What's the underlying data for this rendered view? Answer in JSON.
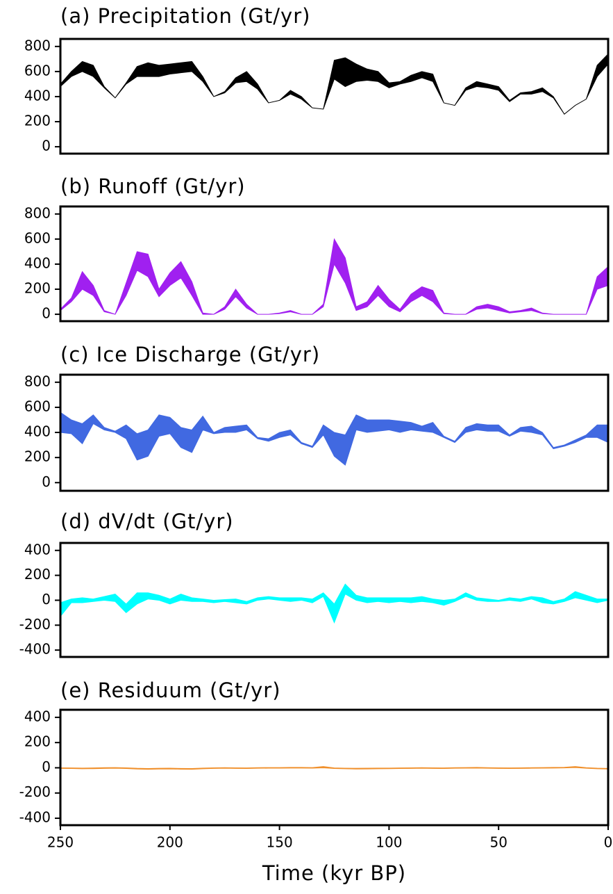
{
  "chart_data": [
    {
      "type": "band",
      "title": "(a) Precipitation (Gt/yr)",
      "color": "#000000",
      "x": [
        250,
        245,
        240,
        235,
        230,
        225,
        220,
        215,
        210,
        205,
        200,
        195,
        190,
        185,
        180,
        175,
        170,
        165,
        160,
        155,
        150,
        145,
        140,
        135,
        130,
        125,
        120,
        115,
        110,
        105,
        100,
        95,
        90,
        85,
        80,
        75,
        70,
        65,
        60,
        55,
        50,
        45,
        40,
        35,
        30,
        25,
        20,
        15,
        10,
        5,
        0
      ],
      "low": [
        480,
        560,
        600,
        560,
        470,
        390,
        500,
        560,
        560,
        560,
        580,
        590,
        600,
        520,
        400,
        430,
        510,
        520,
        460,
        350,
        370,
        420,
        380,
        310,
        300,
        540,
        480,
        520,
        530,
        520,
        470,
        500,
        520,
        550,
        520,
        350,
        330,
        450,
        480,
        470,
        450,
        360,
        420,
        420,
        440,
        390,
        260,
        330,
        380,
        560,
        660
      ],
      "high": [
        500,
        600,
        680,
        650,
        480,
        390,
        510,
        640,
        670,
        650,
        660,
        670,
        680,
        560,
        400,
        440,
        550,
        600,
        500,
        350,
        370,
        450,
        400,
        310,
        300,
        690,
        710,
        660,
        620,
        600,
        510,
        520,
        570,
        600,
        580,
        350,
        330,
        470,
        520,
        500,
        480,
        370,
        430,
        440,
        470,
        400,
        260,
        330,
        380,
        650,
        740
      ],
      "xlim": [
        250,
        0
      ],
      "ylim": [
        -55,
        860
      ],
      "yticks": [
        0,
        200,
        400,
        600,
        800
      ]
    },
    {
      "type": "band",
      "title": "(b) Runoff (Gt/yr)",
      "color": "#a020f0",
      "x": [
        250,
        245,
        240,
        235,
        230,
        225,
        220,
        215,
        210,
        205,
        200,
        195,
        190,
        185,
        180,
        175,
        170,
        165,
        160,
        155,
        150,
        145,
        140,
        135,
        130,
        125,
        120,
        115,
        110,
        105,
        100,
        95,
        90,
        85,
        80,
        75,
        70,
        65,
        60,
        55,
        50,
        45,
        40,
        35,
        30,
        25,
        20,
        15,
        10,
        5,
        0
      ],
      "low": [
        30,
        100,
        200,
        150,
        20,
        0,
        150,
        350,
        300,
        140,
        230,
        290,
        150,
        0,
        0,
        40,
        140,
        50,
        0,
        0,
        5,
        20,
        0,
        0,
        60,
        400,
        250,
        30,
        60,
        150,
        60,
        20,
        100,
        150,
        100,
        5,
        0,
        0,
        40,
        50,
        30,
        10,
        20,
        30,
        5,
        0,
        0,
        0,
        0,
        200,
        230
      ],
      "high": [
        40,
        130,
        340,
        230,
        30,
        0,
        250,
        500,
        480,
        200,
        330,
        420,
        260,
        10,
        0,
        60,
        200,
        80,
        0,
        0,
        10,
        30,
        0,
        0,
        80,
        600,
        450,
        60,
        100,
        230,
        120,
        40,
        160,
        220,
        190,
        10,
        0,
        0,
        60,
        80,
        60,
        20,
        30,
        50,
        10,
        0,
        0,
        0,
        0,
        300,
        380
      ],
      "xlim": [
        250,
        0
      ],
      "ylim": [
        -55,
        860
      ],
      "yticks": [
        0,
        200,
        400,
        600,
        800
      ]
    },
    {
      "type": "band",
      "title": "(c) Ice Discharge (Gt/yr)",
      "color": "#4169e1",
      "x": [
        250,
        245,
        240,
        235,
        230,
        225,
        220,
        215,
        210,
        205,
        200,
        195,
        190,
        185,
        180,
        175,
        170,
        165,
        160,
        155,
        150,
        145,
        140,
        135,
        130,
        125,
        120,
        115,
        110,
        105,
        100,
        95,
        90,
        85,
        80,
        75,
        70,
        65,
        60,
        55,
        50,
        45,
        40,
        35,
        30,
        25,
        20,
        15,
        10,
        5,
        0
      ],
      "low": [
        400,
        390,
        310,
        470,
        420,
        400,
        350,
        180,
        210,
        370,
        390,
        280,
        240,
        420,
        390,
        400,
        400,
        420,
        350,
        330,
        360,
        380,
        310,
        280,
        380,
        210,
        140,
        420,
        400,
        410,
        420,
        400,
        420,
        410,
        400,
        360,
        320,
        400,
        420,
        410,
        410,
        370,
        410,
        400,
        380,
        270,
        290,
        320,
        360,
        360,
        320
      ],
      "high": [
        560,
        500,
        470,
        540,
        440,
        410,
        460,
        390,
        420,
        540,
        520,
        440,
        420,
        530,
        400,
        440,
        450,
        460,
        360,
        350,
        400,
        420,
        320,
        290,
        460,
        400,
        380,
        540,
        500,
        500,
        500,
        490,
        480,
        450,
        480,
        370,
        330,
        440,
        470,
        460,
        460,
        380,
        440,
        450,
        400,
        280,
        300,
        340,
        380,
        460,
        460
      ],
      "xlim": [
        250,
        0
      ],
      "ylim": [
        -65,
        860
      ],
      "yticks": [
        0,
        200,
        400,
        600,
        800
      ]
    },
    {
      "type": "band",
      "title": "(d) dV/dt (Gt/yr)",
      "color": "#00ffff",
      "x": [
        250,
        245,
        240,
        235,
        230,
        225,
        220,
        215,
        210,
        205,
        200,
        195,
        190,
        185,
        180,
        175,
        170,
        165,
        160,
        155,
        150,
        145,
        140,
        135,
        130,
        125,
        120,
        115,
        110,
        105,
        100,
        95,
        90,
        85,
        80,
        75,
        70,
        65,
        60,
        55,
        50,
        45,
        40,
        35,
        30,
        25,
        20,
        15,
        10,
        5,
        0
      ],
      "low": [
        -130,
        -20,
        -20,
        -10,
        0,
        -10,
        -100,
        -30,
        10,
        0,
        -30,
        0,
        -10,
        -10,
        -20,
        -10,
        -20,
        -30,
        0,
        10,
        0,
        -10,
        0,
        -20,
        30,
        -180,
        50,
        0,
        -20,
        -10,
        -20,
        -10,
        -20,
        -10,
        -20,
        -40,
        -10,
        30,
        0,
        -10,
        -10,
        0,
        -10,
        10,
        -20,
        -30,
        -10,
        20,
        0,
        -20,
        0
      ],
      "high": [
        -20,
        10,
        20,
        10,
        30,
        50,
        -30,
        60,
        60,
        40,
        10,
        50,
        20,
        10,
        0,
        5,
        10,
        -10,
        20,
        30,
        20,
        20,
        20,
        10,
        60,
        -30,
        130,
        40,
        20,
        20,
        20,
        20,
        20,
        30,
        10,
        0,
        10,
        60,
        20,
        10,
        0,
        20,
        10,
        30,
        20,
        -10,
        10,
        70,
        40,
        10,
        10
      ],
      "xlim": [
        250,
        0
      ],
      "ylim": [
        -455,
        460
      ],
      "yticks": [
        -400,
        -200,
        0,
        200,
        400
      ]
    },
    {
      "type": "band",
      "title": "(e) Residuum (Gt/yr)",
      "color": "#f0902c",
      "x": [
        250,
        245,
        240,
        235,
        230,
        225,
        220,
        215,
        210,
        205,
        200,
        195,
        190,
        185,
        180,
        175,
        170,
        165,
        160,
        155,
        150,
        145,
        140,
        135,
        130,
        125,
        120,
        115,
        110,
        105,
        100,
        95,
        90,
        85,
        80,
        75,
        70,
        65,
        60,
        55,
        50,
        45,
        40,
        35,
        30,
        25,
        20,
        15,
        10,
        5,
        0
      ],
      "low": [
        -5,
        -6,
        -8,
        -7,
        -5,
        -4,
        -6,
        -10,
        -12,
        -10,
        -9,
        -11,
        -12,
        -8,
        -5,
        -4,
        -5,
        -6,
        -4,
        -3,
        -3,
        -2,
        -2,
        -3,
        0,
        -6,
        -8,
        -10,
        -9,
        -8,
        -7,
        -6,
        -5,
        -4,
        -5,
        -6,
        -4,
        -3,
        -2,
        -4,
        -5,
        -6,
        -5,
        -4,
        -3,
        -2,
        -1,
        2,
        -4,
        -8,
        -10
      ],
      "high": [
        0,
        -1,
        -2,
        -1,
        1,
        2,
        0,
        -4,
        -6,
        -4,
        -3,
        -5,
        -6,
        -2,
        0,
        1,
        0,
        -1,
        1,
        2,
        2,
        3,
        3,
        2,
        10,
        -1,
        -3,
        -4,
        -3,
        -2,
        -2,
        -1,
        0,
        1,
        0,
        -1,
        1,
        2,
        3,
        1,
        0,
        -1,
        0,
        1,
        2,
        3,
        4,
        10,
        1,
        -3,
        -5
      ],
      "xlim": [
        250,
        0
      ],
      "ylim": [
        -455,
        460
      ],
      "yticks": [
        -400,
        -200,
        0,
        200,
        400
      ],
      "xticks": [
        250,
        200,
        150,
        100,
        50,
        0
      ],
      "xlabel": "Time (kyr BP)"
    }
  ]
}
